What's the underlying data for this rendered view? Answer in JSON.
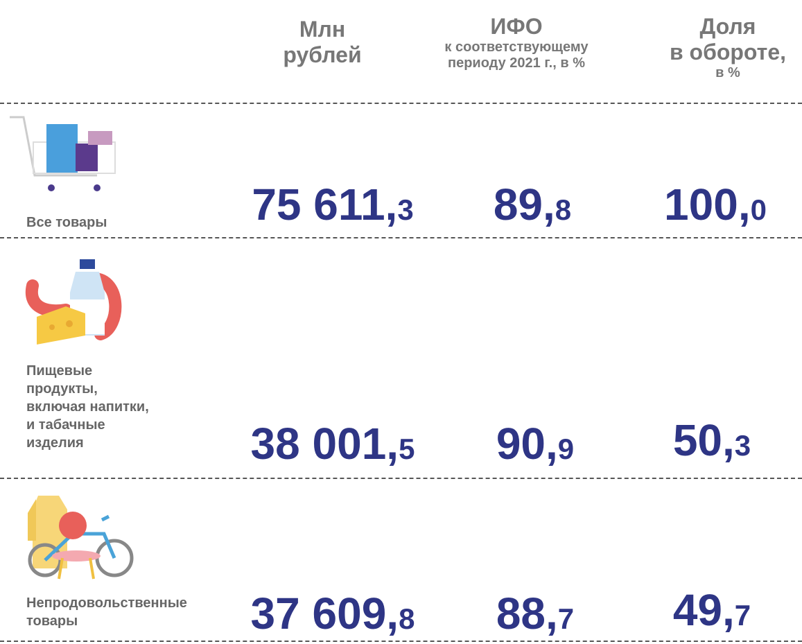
{
  "header": {
    "col1": {
      "title": "Млн\nрублей"
    },
    "col2": {
      "title": "ИФО",
      "subtitle": "к соответствующему\nпериоду 2021 г., в %"
    },
    "col3": {
      "title": "Доля\nв обороте,",
      "subtitle": "в %"
    }
  },
  "rows": [
    {
      "label": "Все товары",
      "rub": "75 611,3",
      "ifo": "89,8",
      "share": "100,0"
    },
    {
      "label": "Пищевые\nпродукты,\nвключая напитки,\nи табачные\nизделия",
      "rub": "38 001,5",
      "ifo": "90,9",
      "share": "50,3"
    },
    {
      "label": "Непродовольственные\nтовары",
      "rub": "37 609,8",
      "ifo": "88,7",
      "share": "49,7"
    }
  ]
}
